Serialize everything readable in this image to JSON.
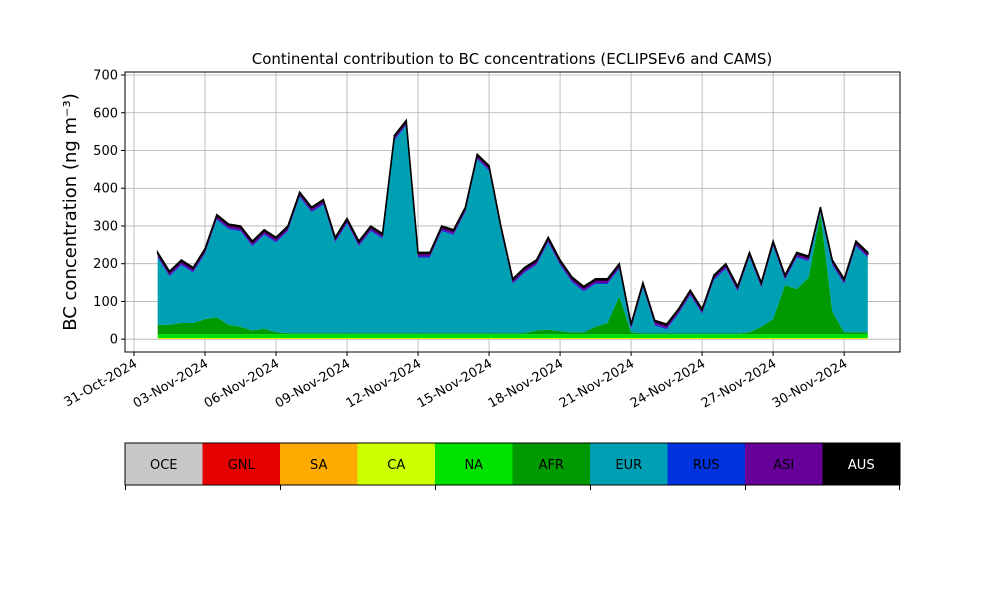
{
  "chart_data": {
    "type": "stacked_area",
    "title": "Continental contribution to BC concentrations (ECLIPSEv6 and CAMS)",
    "y_label": "BC concentration (ng m⁻³)",
    "x": [
      1.0,
      1.5,
      2.0,
      2.5,
      3.0,
      3.5,
      4.0,
      4.5,
      5.0,
      5.5,
      6.0,
      6.5,
      7.0,
      7.5,
      8.0,
      8.5,
      9.0,
      9.5,
      10.0,
      10.5,
      11.0,
      11.5,
      12.0,
      12.5,
      13.0,
      13.5,
      14.0,
      14.5,
      15.0,
      15.5,
      16.0,
      16.5,
      17.0,
      17.5,
      18.0,
      18.5,
      19.0,
      19.5,
      20.0,
      20.5,
      21.0,
      21.5,
      22.0,
      22.5,
      23.0,
      23.5,
      24.0,
      24.5,
      25.0,
      25.5,
      26.0,
      26.5,
      27.0,
      27.5,
      28.0,
      28.5,
      29.0,
      29.5,
      30.0,
      30.5,
      31.0
    ],
    "xlim": [
      -0.38,
      32.36
    ],
    "xticks": [
      {
        "value": 0,
        "label": "31-Oct-2024"
      },
      {
        "value": 3,
        "label": "03-Nov-2024"
      },
      {
        "value": 6,
        "label": "06-Nov-2024"
      },
      {
        "value": 9,
        "label": "09-Nov-2024"
      },
      {
        "value": 12,
        "label": "12-Nov-2024"
      },
      {
        "value": 15,
        "label": "15-Nov-2024"
      },
      {
        "value": 18,
        "label": "18-Nov-2024"
      },
      {
        "value": 21,
        "label": "21-Nov-2024"
      },
      {
        "value": 24,
        "label": "24-Nov-2024"
      },
      {
        "value": 27,
        "label": "27-Nov-2024"
      },
      {
        "value": 30,
        "label": "30-Nov-2024"
      }
    ],
    "ylim": [
      -34,
      708
    ],
    "yticks": [
      0,
      100,
      200,
      300,
      400,
      500,
      600,
      700
    ],
    "grid": true,
    "series": [
      {
        "name": "OCE",
        "color": "#c8c8c8",
        "values": [
          0,
          0,
          0,
          0,
          0,
          0,
          0,
          0,
          0,
          0,
          0,
          0,
          0,
          0,
          0,
          0,
          0,
          0,
          0,
          0,
          0,
          0,
          0,
          0,
          0,
          0,
          0,
          0,
          0,
          0,
          0,
          0,
          0,
          0,
          0,
          0,
          0,
          0,
          0,
          0,
          0,
          0,
          0,
          0,
          0,
          0,
          0,
          0,
          0,
          0,
          0,
          0,
          0,
          0,
          0,
          0,
          0,
          0,
          0,
          0,
          0
        ]
      },
      {
        "name": "GNL",
        "color": "#e60000",
        "values": [
          0,
          0,
          0,
          0,
          0,
          0,
          0,
          0,
          0,
          0,
          0,
          0,
          0,
          0,
          0,
          0,
          0,
          0,
          0,
          0,
          0,
          0,
          0,
          0,
          0,
          0,
          0,
          0,
          0,
          0,
          0,
          0,
          0,
          0,
          0,
          0,
          0,
          0,
          0,
          0,
          0,
          0,
          0,
          0,
          0,
          0,
          0,
          0,
          0,
          0,
          0,
          0,
          0,
          0,
          0,
          0,
          0,
          0,
          0,
          0,
          0
        ]
      },
      {
        "name": "SA",
        "color": "#ffaa00",
        "values": [
          1,
          1,
          1,
          1,
          1,
          1,
          1,
          1,
          1,
          1,
          1,
          1,
          1,
          1,
          1,
          1,
          1,
          1,
          1,
          1,
          1,
          1,
          1,
          1,
          1,
          1,
          1,
          1,
          1,
          1,
          1,
          1,
          1,
          1,
          1,
          1,
          1,
          1,
          1,
          1,
          1,
          1,
          1,
          1,
          1,
          1,
          1,
          1,
          1,
          1,
          1,
          1,
          1,
          1,
          1,
          1,
          1,
          1,
          1,
          1,
          1
        ]
      },
      {
        "name": "CA",
        "color": "#ccff00",
        "values": [
          2,
          2,
          2,
          2,
          2,
          2,
          2,
          2,
          2,
          2,
          2,
          2,
          2,
          2,
          2,
          2,
          2,
          2,
          2,
          2,
          2,
          2,
          2,
          2,
          2,
          2,
          2,
          2,
          2,
          2,
          2,
          2,
          2,
          2,
          2,
          2,
          2,
          2,
          2,
          2,
          2,
          2,
          2,
          2,
          2,
          2,
          2,
          2,
          2,
          2,
          2,
          2,
          2,
          2,
          2,
          2,
          2,
          2,
          2,
          2,
          2
        ]
      },
      {
        "name": "NA",
        "color": "#00e100",
        "values": [
          10,
          10,
          10,
          10,
          10,
          10,
          10,
          10,
          10,
          10,
          10,
          10,
          10,
          10,
          10,
          10,
          10,
          10,
          10,
          10,
          10,
          10,
          10,
          10,
          10,
          10,
          10,
          10,
          10,
          10,
          10,
          10,
          10,
          10,
          10,
          10,
          10,
          10,
          10,
          10,
          10,
          10,
          10,
          10,
          10,
          10,
          10,
          10,
          10,
          10,
          10,
          10,
          10,
          10,
          10,
          10,
          10,
          10,
          10,
          10,
          10
        ]
      },
      {
        "name": "AFR",
        "color": "#009900",
        "values": [
          25,
          25,
          30,
          30,
          40,
          45,
          25,
          20,
          10,
          15,
          5,
          3,
          3,
          3,
          3,
          3,
          3,
          3,
          3,
          3,
          3,
          3,
          3,
          3,
          3,
          3,
          3,
          3,
          3,
          3,
          3,
          3,
          10,
          12,
          8,
          5,
          5,
          20,
          30,
          100,
          5,
          2,
          2,
          2,
          2,
          2,
          2,
          2,
          2,
          2,
          5,
          20,
          40,
          130,
          120,
          150,
          320,
          60,
          5,
          5,
          5
        ]
      },
      {
        "name": "EUR",
        "color": "#00a0b4",
        "values": [
          178,
          128,
          153,
          133,
          173,
          258,
          253,
          253,
          223,
          248,
          238,
          270,
          360,
          320,
          340,
          240,
          290,
          230,
          270,
          250,
          510,
          550,
          200,
          200,
          270,
          260,
          320,
          460,
          430,
          270,
          130,
          160,
          173,
          231,
          175,
          133,
          108,
          113,
          103,
          73,
          8,
          121,
          21,
          11,
          51,
          101,
          51,
          141,
          171,
          111,
          198,
          103,
          193,
          13,
          83,
          43,
          3,
          123,
          128,
          228,
          198
        ]
      },
      {
        "name": "RUS",
        "color": "#0033dd",
        "values": [
          3,
          3,
          3,
          3,
          3,
          3,
          3,
          3,
          3,
          3,
          3,
          3,
          3,
          3,
          3,
          3,
          3,
          3,
          3,
          3,
          3,
          3,
          3,
          3,
          3,
          3,
          3,
          3,
          3,
          3,
          3,
          3,
          3,
          3,
          3,
          3,
          3,
          3,
          3,
          3,
          3,
          3,
          3,
          3,
          3,
          3,
          3,
          3,
          3,
          3,
          3,
          3,
          3,
          3,
          3,
          3,
          3,
          3,
          3,
          3,
          3
        ]
      },
      {
        "name": "ASI",
        "color": "#660099",
        "values": [
          8,
          8,
          8,
          8,
          8,
          8,
          8,
          8,
          8,
          8,
          8,
          8,
          8,
          8,
          8,
          8,
          8,
          8,
          8,
          8,
          8,
          8,
          8,
          8,
          8,
          8,
          8,
          8,
          8,
          8,
          8,
          8,
          8,
          8,
          8,
          8,
          8,
          8,
          8,
          8,
          8,
          8,
          8,
          8,
          8,
          8,
          8,
          8,
          8,
          8,
          8,
          8,
          8,
          8,
          8,
          8,
          8,
          8,
          8,
          8,
          8
        ]
      },
      {
        "name": "AUS",
        "color": "#000000",
        "values": [
          3,
          3,
          3,
          3,
          3,
          3,
          3,
          3,
          3,
          3,
          3,
          3,
          3,
          3,
          3,
          3,
          3,
          3,
          3,
          3,
          3,
          3,
          3,
          3,
          3,
          3,
          3,
          3,
          3,
          3,
          3,
          3,
          3,
          3,
          3,
          3,
          3,
          3,
          3,
          3,
          3,
          3,
          3,
          3,
          3,
          3,
          3,
          3,
          3,
          3,
          3,
          3,
          3,
          3,
          3,
          3,
          3,
          3,
          3,
          3,
          3
        ]
      }
    ]
  }
}
